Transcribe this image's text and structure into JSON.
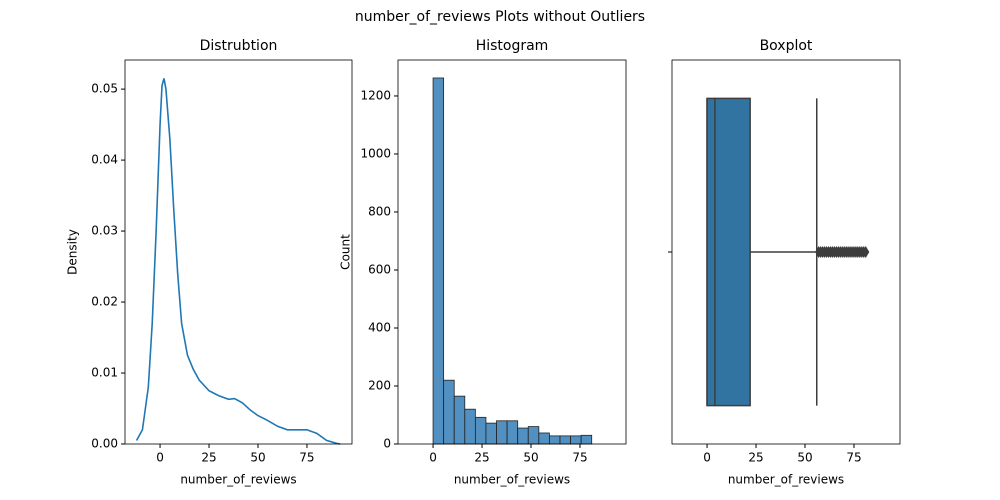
{
  "title": "number_of_reviews Plots without Outliers",
  "chart_data": [
    {
      "type": "line",
      "title": "Distrubtion",
      "xlabel": "number_of_reviews",
      "ylabel": "Density",
      "color": "#1f77b4",
      "x": [
        -12,
        -9,
        -6,
        -4,
        -2,
        0,
        1,
        2,
        3,
        5,
        7,
        9,
        11,
        14,
        17,
        20,
        25,
        30,
        35,
        38,
        42,
        46,
        50,
        55,
        60,
        65,
        70,
        75,
        80,
        85,
        90,
        92
      ],
      "values": [
        0.0005,
        0.002,
        0.008,
        0.017,
        0.03,
        0.045,
        0.0505,
        0.0515,
        0.05,
        0.043,
        0.033,
        0.024,
        0.017,
        0.0125,
        0.0105,
        0.009,
        0.0075,
        0.0068,
        0.0063,
        0.0064,
        0.0058,
        0.0048,
        0.004,
        0.0033,
        0.0025,
        0.002,
        0.002,
        0.002,
        0.0015,
        0.0005,
        0.0001,
        0
      ],
      "xlim": [
        -17.9,
        98
      ],
      "xticks": [
        0,
        25,
        50,
        75
      ],
      "ylim": [
        0,
        0.0541
      ],
      "yticks": [
        {
          "value": 0,
          "label": "0.00"
        },
        0.01,
        0.02,
        0.03,
        0.04,
        0.05
      ]
    },
    {
      "type": "histogram",
      "title": "Histogram",
      "xlabel": "number_of_reviews",
      "ylabel": "Count",
      "color": "#5190c0",
      "bins": [
        0,
        5.4,
        10.8,
        16.2,
        21.6,
        27,
        32.4,
        37.8,
        43.2,
        48.6,
        54,
        59.4,
        64.8,
        70.2,
        75.6,
        81
      ],
      "values": [
        1262,
        220,
        165,
        120,
        92,
        72,
        80,
        80,
        55,
        60,
        38,
        28,
        28,
        28,
        30
      ],
      "xlim": [
        -17.9,
        98.5
      ],
      "xticks": [
        0,
        25,
        50,
        75
      ],
      "ylim": [
        0,
        1324
      ],
      "yticks": [
        0,
        200,
        400,
        600,
        800,
        1000,
        1200
      ]
    },
    {
      "type": "box",
      "title": "Boxplot",
      "xlabel": "number_of_reviews",
      "color": "#3274a1",
      "categories": [
        null
      ],
      "whisker_low": 0,
      "q1": 0,
      "median": 4,
      "q3": 22,
      "whisker_high": 56,
      "outliers": [
        57,
        58,
        59,
        60,
        61,
        62,
        63,
        64,
        65,
        66,
        67,
        68,
        69,
        70,
        71,
        72,
        73,
        74,
        75,
        76,
        77,
        78,
        79,
        80,
        81
      ],
      "xlim": [
        -17.9,
        98.5
      ],
      "xticks": [
        0,
        25,
        50,
        75
      ]
    }
  ]
}
